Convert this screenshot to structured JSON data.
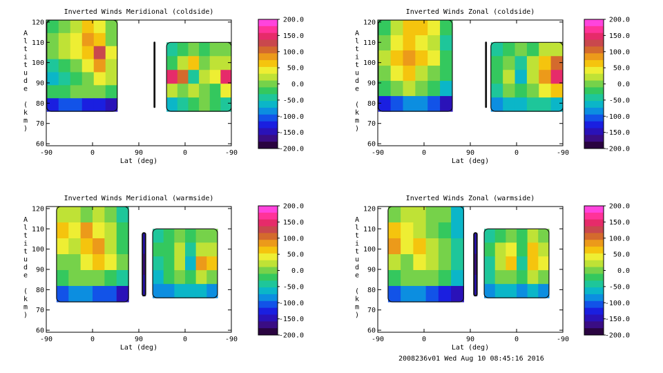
{
  "footer": "2008236v01 Wed Aug 10 08:45:16 2016",
  "colorbar": {
    "labels": [
      "200.0",
      "150.0",
      "100.0",
      "50.0",
      "0.0",
      "-50.0",
      "-100.0",
      "-150.0",
      "-200.0"
    ],
    "colors": [
      "#ff44dd",
      "#ff3399",
      "#e62b6a",
      "#c9484d",
      "#d46a2d",
      "#ec9a1a",
      "#f5c40e",
      "#eeee33",
      "#bfe236",
      "#76d24a",
      "#34c85e",
      "#1ec69a",
      "#0bb6c8",
      "#0c8ee0",
      "#1253e8",
      "#1a1fe0",
      "#2a12b8",
      "#3a0d84",
      "#2a0440"
    ]
  },
  "chart_data": [
    {
      "type": "heatmap",
      "title": "Inverted Winds Meridional (coldside)",
      "xlabel": "Lat (deg)",
      "ylabel": "Altitude (km)",
      "xticks": [
        "-90",
        "0",
        "90",
        "0",
        "-90"
      ],
      "yticks": [
        "60",
        "70",
        "80",
        "90",
        "100",
        "110",
        "120"
      ],
      "ylim": [
        59,
        121
      ],
      "zlim": [
        -200,
        200
      ],
      "blocks": [
        {
          "x": [
            -89,
            48
          ],
          "alt": [
            76,
            121
          ],
          "cells": [
            [
              -20,
              10,
              30,
              60,
              40,
              0
            ],
            [
              0,
              25,
              45,
              80,
              60,
              10
            ],
            [
              -10,
              20,
              35,
              70,
              120,
              40
            ],
            [
              -40,
              -15,
              10,
              40,
              90,
              30
            ],
            [
              -60,
              -40,
              -20,
              10,
              40,
              20
            ],
            [
              -30,
              -20,
              10,
              0,
              -10,
              -30
            ],
            [
              -120,
              -100,
              -110,
              -120,
              -130,
              -150
            ]
          ]
        },
        {
          "x": [
            120,
            121
          ],
          "alt": [
            78,
            110
          ],
          "cells": [
            [
              -170
            ],
            [
              -170
            ],
            [
              -170
            ]
          ]
        },
        {
          "x": [
            144,
            270
          ],
          "alt": [
            76,
            110
          ],
          "cells": [
            [
              -50,
              -30,
              0,
              -20,
              -10,
              10
            ],
            [
              -30,
              20,
              60,
              -10,
              30,
              20
            ],
            [
              140,
              100,
              -40,
              20,
              50,
              150
            ],
            [
              30,
              10,
              20,
              10,
              -20,
              40
            ],
            [
              -60,
              -40,
              -20,
              -10,
              -30,
              -40
            ]
          ]
        }
      ]
    },
    {
      "type": "heatmap",
      "title": "Inverted Winds Zonal (coldside)",
      "xlabel": "Lat (deg)",
      "ylabel": "Altitude (km)",
      "xticks": [
        "-90",
        "0",
        "90",
        "0",
        "-90"
      ],
      "yticks": [
        "60",
        "70",
        "80",
        "90",
        "100",
        "110",
        "120"
      ],
      "ylim": [
        59,
        121
      ],
      "zlim": [
        -200,
        200
      ],
      "blocks": [
        {
          "x": [
            -89,
            55
          ],
          "alt": [
            76,
            121
          ],
          "cells": [
            [
              -20,
              30,
              60,
              70,
              40,
              -30
            ],
            [
              0,
              40,
              70,
              50,
              30,
              -40
            ],
            [
              20,
              70,
              90,
              60,
              40,
              -20
            ],
            [
              0,
              50,
              60,
              30,
              10,
              -30
            ],
            [
              -30,
              -10,
              20,
              0,
              -20,
              -60
            ],
            [
              -120,
              -100,
              -90,
              -80,
              -100,
              -140
            ]
          ]
        },
        {
          "x": [
            120,
            121
          ],
          "alt": [
            78,
            110
          ],
          "cells": [
            [
              -170
            ],
            [
              -170
            ],
            [
              -170
            ]
          ]
        },
        {
          "x": [
            130,
            270
          ],
          "alt": [
            76,
            110
          ],
          "cells": [
            [
              -50,
              -30,
              -10,
              -20,
              20,
              30
            ],
            [
              -30,
              -10,
              -40,
              30,
              60,
              100
            ],
            [
              -20,
              30,
              -60,
              20,
              80,
              150
            ],
            [
              -40,
              0,
              -30,
              10,
              50,
              60
            ],
            [
              -80,
              -60,
              -60,
              -40,
              -50,
              -70
            ]
          ]
        }
      ]
    },
    {
      "type": "heatmap",
      "title": "Inverted Winds Meridional (warmside)",
      "xlabel": "Lat (deg)",
      "ylabel": "Altitude (km)",
      "xticks": [
        "-90",
        "0",
        "90",
        "0",
        "-90"
      ],
      "yticks": [
        "60",
        "70",
        "80",
        "90",
        "100",
        "110",
        "120"
      ],
      "ylim": [
        59,
        121
      ],
      "zlim": [
        -200,
        200
      ],
      "blocks": [
        {
          "x": [
            -70,
            70
          ],
          "alt": [
            74,
            121
          ],
          "cells": [
            [
              20,
              30,
              10,
              20,
              0,
              -40
            ],
            [
              60,
              40,
              90,
              40,
              20,
              -30
            ],
            [
              40,
              20,
              60,
              80,
              30,
              -20
            ],
            [
              10,
              0,
              50,
              60,
              40,
              -10
            ],
            [
              -20,
              -10,
              10,
              0,
              -20,
              -50
            ],
            [
              -100,
              -90,
              -90,
              -100,
              -110,
              -140
            ]
          ]
        },
        {
          "x": [
            97,
            103
          ],
          "alt": [
            77,
            108
          ],
          "cells": [
            [
              -150
            ],
            [
              -160
            ],
            [
              -150
            ]
          ]
        },
        {
          "x": [
            117,
            243
          ],
          "alt": [
            76,
            110
          ],
          "cells": [
            [
              -50,
              -30,
              -10,
              -30,
              -10,
              0
            ],
            [
              -30,
              -20,
              20,
              -40,
              30,
              20
            ],
            [
              -40,
              -20,
              30,
              -60,
              80,
              60
            ],
            [
              -60,
              -30,
              0,
              -30,
              20,
              10
            ],
            [
              -90,
              -80,
              -60,
              -70,
              -60,
              -80
            ]
          ]
        }
      ]
    },
    {
      "type": "heatmap",
      "title": "Inverted Winds Zonal (warmside)",
      "xlabel": "Lat (deg)",
      "ylabel": "Altitude (km)",
      "xticks": [
        "-90",
        "0",
        "90",
        "0",
        "-90"
      ],
      "yticks": [
        "60",
        "70",
        "80",
        "90",
        "100",
        "110",
        "120"
      ],
      "ylim": [
        59,
        121
      ],
      "zlim": [
        -200,
        200
      ],
      "blocks": [
        {
          "x": [
            -70,
            77
          ],
          "alt": [
            74,
            121
          ],
          "cells": [
            [
              0,
              20,
              30,
              10,
              -10,
              -60
            ],
            [
              70,
              50,
              20,
              10,
              -20,
              -70
            ],
            [
              80,
              40,
              60,
              30,
              0,
              -50
            ],
            [
              30,
              10,
              40,
              20,
              -10,
              -40
            ],
            [
              -20,
              -10,
              10,
              0,
              -30,
              -60
            ],
            [
              -100,
              -90,
              -90,
              -100,
              -120,
              -150
            ]
          ]
        },
        {
          "x": [
            97,
            103
          ],
          "alt": [
            77,
            108
          ],
          "cells": [
            [
              -150
            ],
            [
              -160
            ],
            [
              -150
            ]
          ]
        },
        {
          "x": [
            117,
            243
          ],
          "alt": [
            76,
            110
          ],
          "cells": [
            [
              -40,
              -20,
              10,
              -20,
              30,
              10
            ],
            [
              -20,
              20,
              40,
              -20,
              60,
              30
            ],
            [
              -40,
              30,
              60,
              -40,
              70,
              50
            ],
            [
              -50,
              0,
              -10,
              -30,
              20,
              0
            ],
            [
              -90,
              -70,
              -60,
              -80,
              -70,
              -90
            ]
          ]
        }
      ]
    }
  ]
}
